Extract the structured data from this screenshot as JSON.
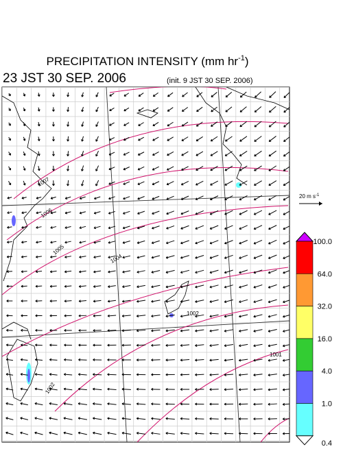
{
  "header": {
    "title": "PRECIPITATION INTENSITY (mm hr",
    "title_sup": "-1",
    "title_end": ")",
    "time": "23 JST 30 SEP. 2006",
    "init": "(init. 9 JST 30 SEP. 2006)"
  },
  "scale": {
    "label": "20 m s",
    "sup": "-1"
  },
  "legend": {
    "levels": [
      "100.0",
      "64.0",
      "32.0",
      "16.0",
      "4.0",
      "1.0",
      "0.4"
    ]
  },
  "isobars": {
    "labels": [
      "1007",
      "1006",
      "1005",
      "1004",
      "1002",
      "1001",
      "1002"
    ]
  }
}
